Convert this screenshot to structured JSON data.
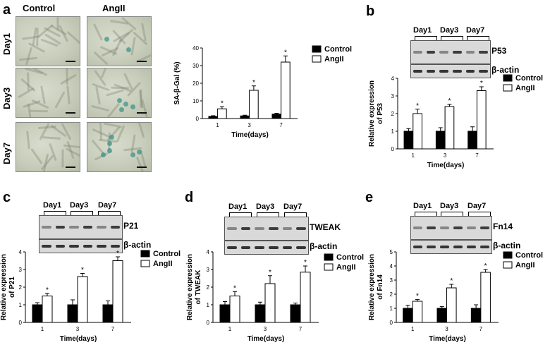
{
  "panels": {
    "a": "a",
    "b": "b",
    "c": "c",
    "d": "d",
    "e": "e"
  },
  "micrographs": {
    "columns": [
      "Control",
      "AngII"
    ],
    "rows": [
      "Day1",
      "Day3",
      "Day7"
    ]
  },
  "blots": {
    "b": {
      "days": [
        "Day1",
        "Day3",
        "Day7"
      ],
      "target": "P53",
      "loading": "β-actin"
    },
    "c": {
      "days": [
        "Day1",
        "Day3",
        "Day7"
      ],
      "target": "P21",
      "loading": "β-actin"
    },
    "d": {
      "days": [
        "Day1",
        "Day3",
        "Day7"
      ],
      "target": "TWEAK",
      "loading": "β-actin"
    },
    "e": {
      "days": [
        "Day1",
        "Day3",
        "Day7"
      ],
      "target": "Fn14",
      "loading": "β-actin"
    }
  },
  "chart_data": [
    {
      "id": "a",
      "type": "bar",
      "categories": [
        "1",
        "3",
        "7"
      ],
      "series": [
        {
          "name": "Control",
          "values": [
            1.2,
            1.5,
            2.5
          ],
          "errors": [
            0.4,
            0.4,
            0.5
          ]
        },
        {
          "name": "AngII",
          "values": [
            5.5,
            16,
            32
          ],
          "errors": [
            1.2,
            2.5,
            3.5
          ]
        }
      ],
      "significance": [
        "*",
        "*",
        "*"
      ],
      "xlabel": "Time(days)",
      "ylabel": "SA-β-Gal (%)",
      "ylim": [
        0,
        40
      ],
      "yticks": [
        0,
        10,
        20,
        30,
        40
      ]
    },
    {
      "id": "b",
      "type": "bar",
      "categories": [
        "1",
        "3",
        "7"
      ],
      "series": [
        {
          "name": "Control",
          "values": [
            1.0,
            1.0,
            1.0
          ],
          "errors": [
            0.15,
            0.2,
            0.25
          ]
        },
        {
          "name": "AngII",
          "values": [
            2.0,
            2.4,
            3.3
          ],
          "errors": [
            0.25,
            0.12,
            0.22
          ]
        }
      ],
      "significance": [
        "*",
        "*",
        "*"
      ],
      "xlabel": "Time(days)",
      "ylabel": "Relative expression of P53",
      "ylim": [
        0,
        4
      ],
      "yticks": [
        0,
        1,
        2,
        3,
        4
      ]
    },
    {
      "id": "c",
      "type": "bar",
      "categories": [
        "1",
        "3",
        "7"
      ],
      "series": [
        {
          "name": "Control",
          "values": [
            1.0,
            1.0,
            1.0
          ],
          "errors": [
            0.12,
            0.28,
            0.22
          ]
        },
        {
          "name": "AngII",
          "values": [
            1.5,
            2.6,
            3.5
          ],
          "errors": [
            0.15,
            0.18,
            0.22
          ]
        }
      ],
      "significance": [
        "*",
        "*",
        "*"
      ],
      "xlabel": "Time(days)",
      "ylabel": "Relative expression of P21",
      "ylim": [
        0,
        4
      ],
      "yticks": [
        0,
        1,
        2,
        3,
        4
      ]
    },
    {
      "id": "d",
      "type": "bar",
      "categories": [
        "1",
        "3",
        "7"
      ],
      "series": [
        {
          "name": "Control",
          "values": [
            1.0,
            1.0,
            1.0
          ],
          "errors": [
            0.18,
            0.15,
            0.1
          ]
        },
        {
          "name": "AngII",
          "values": [
            1.5,
            2.2,
            2.85
          ],
          "errors": [
            0.25,
            0.45,
            0.35
          ]
        }
      ],
      "significance": [
        "*",
        "*",
        "*"
      ],
      "xlabel": "Time(days)",
      "ylabel": "Relative expression of TWEAK",
      "ylim": [
        0,
        4
      ],
      "yticks": [
        0,
        1,
        2,
        3,
        4
      ]
    },
    {
      "id": "e",
      "type": "bar",
      "categories": [
        "1",
        "3",
        "7"
      ],
      "series": [
        {
          "name": "Control",
          "values": [
            1.0,
            1.0,
            1.0
          ],
          "errors": [
            0.22,
            0.12,
            0.25
          ]
        },
        {
          "name": "AngII",
          "values": [
            1.5,
            2.45,
            3.55
          ],
          "errors": [
            0.12,
            0.25,
            0.2
          ]
        }
      ],
      "significance": [
        "*",
        "*",
        "*"
      ],
      "xlabel": "Time(days)",
      "ylabel": "Relative expression of Fn14",
      "ylim": [
        0,
        5
      ],
      "yticks": [
        0,
        1,
        2,
        3,
        4,
        5
      ]
    }
  ]
}
